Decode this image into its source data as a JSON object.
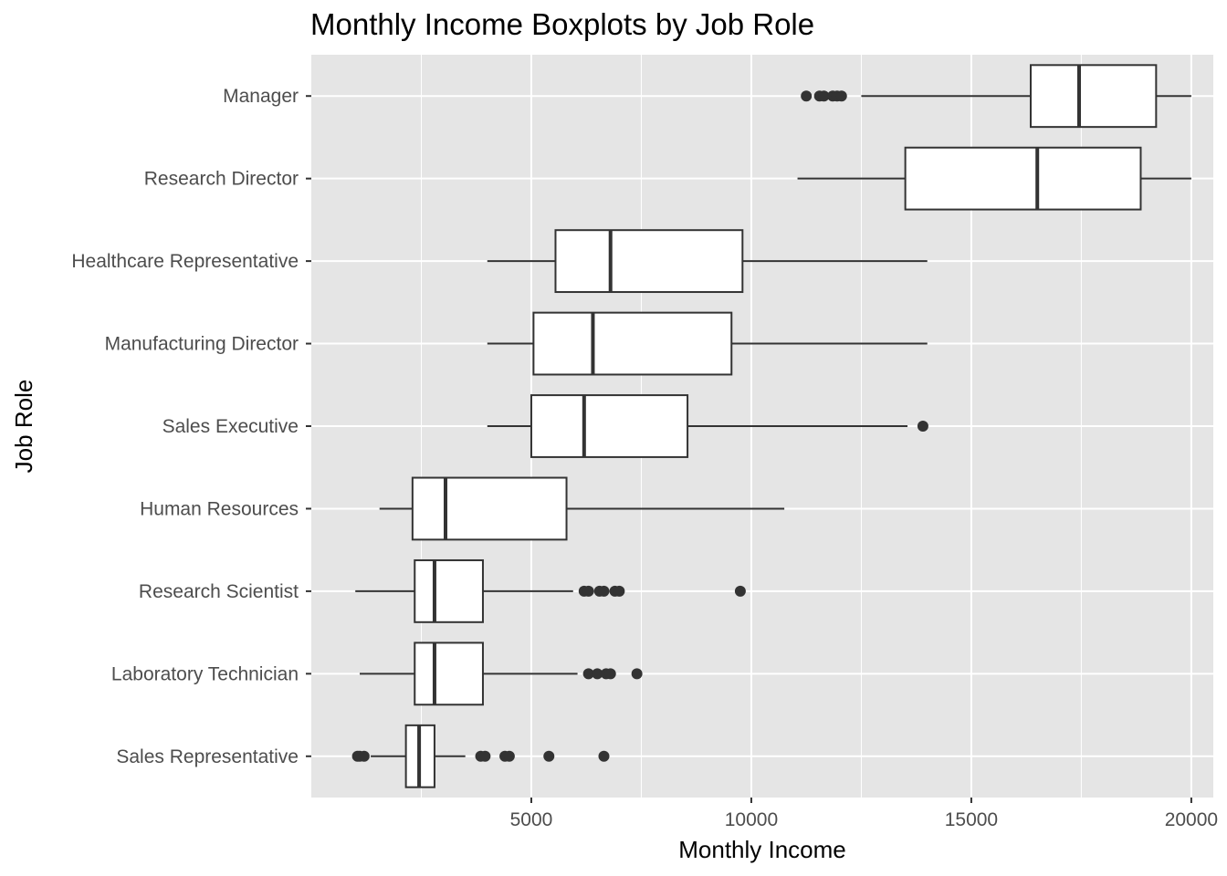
{
  "chart_data": {
    "type": "boxplot",
    "title": "Monthly Income Boxplots by Job Role",
    "xlabel": "Monthly Income",
    "ylabel": "Job Role",
    "xlim": [
      0,
      20500
    ],
    "xticks": [
      5000,
      10000,
      15000,
      20000
    ],
    "xtick_labels": [
      "5000",
      "10000",
      "15000",
      "20000"
    ],
    "grid": true,
    "orientation": "horizontal",
    "categories": [
      "Manager",
      "Research Director",
      "Healthcare Representative",
      "Manufacturing Director",
      "Sales Executive",
      "Human Resources",
      "Research Scientist",
      "Laboratory Technician",
      "Sales Representative"
    ],
    "boxes": [
      {
        "category": "Manager",
        "whisker_low": 12500,
        "q1": 16350,
        "median": 17450,
        "q3": 19200,
        "whisker_high": 20000,
        "outliers": [
          11250,
          11550,
          11650,
          11850,
          11950,
          12050
        ]
      },
      {
        "category": "Research Director",
        "whisker_low": 11050,
        "q1": 13500,
        "median": 16500,
        "q3": 18850,
        "whisker_high": 20000,
        "outliers": []
      },
      {
        "category": "Healthcare Representative",
        "whisker_low": 4000,
        "q1": 5550,
        "median": 6800,
        "q3": 9800,
        "whisker_high": 14000,
        "outliers": []
      },
      {
        "category": "Manufacturing Director",
        "whisker_low": 4000,
        "q1": 5050,
        "median": 6400,
        "q3": 9550,
        "whisker_high": 14000,
        "outliers": []
      },
      {
        "category": "Sales Executive",
        "whisker_low": 4000,
        "q1": 5000,
        "median": 6200,
        "q3": 8550,
        "whisker_high": 13550,
        "outliers": [
          13900
        ]
      },
      {
        "category": "Human Resources",
        "whisker_low": 1550,
        "q1": 2300,
        "median": 3050,
        "q3": 5800,
        "whisker_high": 10750,
        "outliers": []
      },
      {
        "category": "Research Scientist",
        "whisker_low": 1000,
        "q1": 2350,
        "median": 2800,
        "q3": 3900,
        "whisker_high": 5950,
        "outliers": [
          6200,
          6300,
          6550,
          6650,
          6900,
          7000,
          9750
        ]
      },
      {
        "category": "Laboratory Technician",
        "whisker_low": 1100,
        "q1": 2350,
        "median": 2800,
        "q3": 3900,
        "whisker_high": 6050,
        "outliers": [
          6300,
          6500,
          6700,
          6800,
          7400
        ]
      },
      {
        "category": "Sales Representative",
        "whisker_low": 1350,
        "q1": 2150,
        "median": 2450,
        "q3": 2800,
        "whisker_high": 3500,
        "outliers": [
          1050,
          1100,
          1200,
          3850,
          3950,
          4400,
          4500,
          5400,
          6650
        ]
      }
    ],
    "colors": {
      "panel_background": "#e5e5e5",
      "grid_major": "#ffffff",
      "box_fill": "#ffffff",
      "box_stroke": "#333333"
    }
  }
}
